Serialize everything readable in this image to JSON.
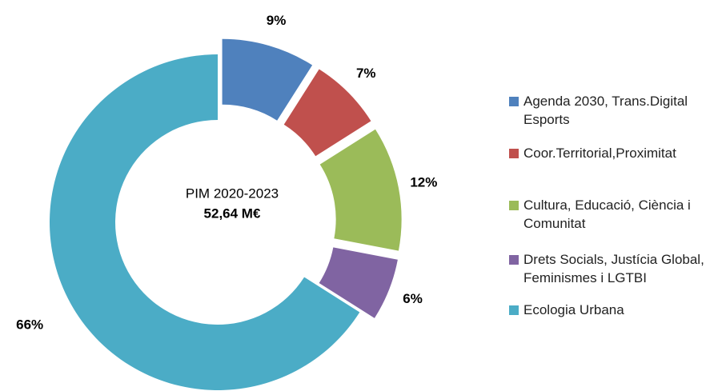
{
  "chart_data": {
    "type": "donut",
    "center_title": "PIM 2020-2023",
    "center_value": "52,64 M€",
    "categories": [
      "Agenda 2030, Trans.Digital Esports",
      "Coor.Territorial,Proximitat",
      "Cultura, Educació, Ciència i Comunitat",
      "Drets Socials, Justícia Global, Feminismes i LGTBI",
      "Ecologia Urbana"
    ],
    "values": [
      9,
      7,
      12,
      6,
      66
    ],
    "value_labels": [
      "9%",
      "7%",
      "12%",
      "6%",
      "66%"
    ],
    "colors": [
      "#4f81bd",
      "#c0504d",
      "#9bbb59",
      "#8064a2",
      "#4bacc6"
    ],
    "legend": "right"
  }
}
